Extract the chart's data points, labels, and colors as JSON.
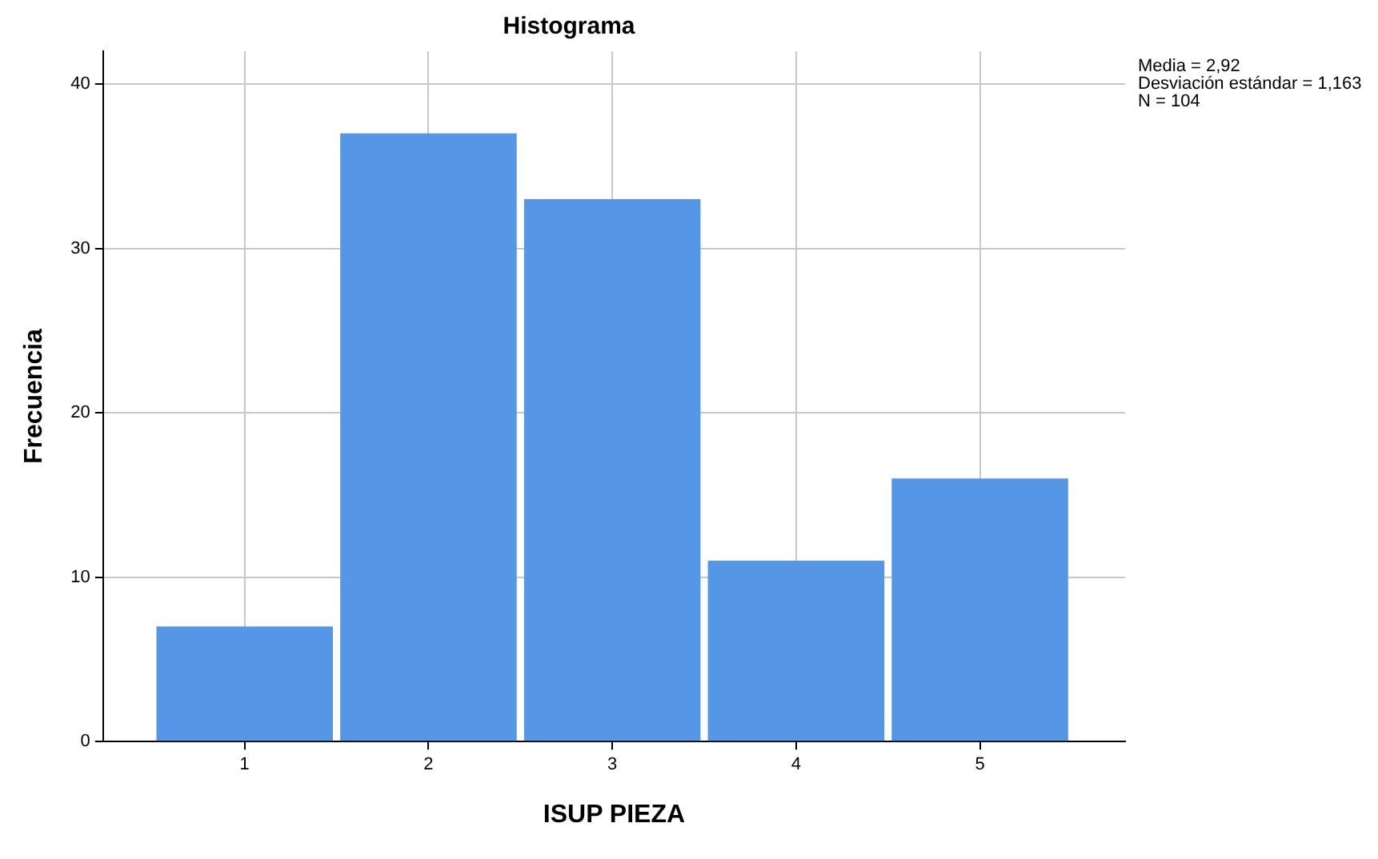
{
  "chart_data": {
    "type": "histogram",
    "title": "Histograma",
    "xlabel": "ISUP PIEZA",
    "ylabel": "Frecuencia",
    "bins": [
      0.5,
      1.5,
      2.5,
      3.5,
      4.5,
      5.5
    ],
    "values": [
      7,
      37,
      33,
      11,
      16
    ],
    "color": "#5596e6",
    "xlim": [
      0.23,
      5.79
    ],
    "xticks": [
      1,
      2,
      3,
      4,
      5
    ],
    "ylim": [
      0,
      42
    ],
    "yticks": [
      0,
      10,
      20,
      30,
      40
    ],
    "grid": true,
    "legend": false,
    "annotations": [
      "Media = 2,92",
      "Desviación estándar = 1,163",
      "N = 104"
    ]
  }
}
